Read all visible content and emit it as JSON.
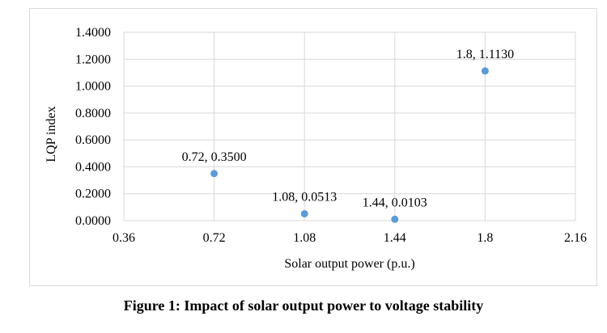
{
  "chart_data": {
    "type": "scatter",
    "title": "",
    "xlabel": "Solar output power (p.u.)",
    "ylabel": "LQP index",
    "xlim": [
      0.36,
      2.16
    ],
    "ylim": [
      0.0,
      1.4
    ],
    "x_ticks": [
      {
        "value": 0.36,
        "label": "0.36"
      },
      {
        "value": 0.72,
        "label": "0.72"
      },
      {
        "value": 1.08,
        "label": "1.08"
      },
      {
        "value": 1.44,
        "label": "1.44"
      },
      {
        "value": 1.8,
        "label": "1.8"
      },
      {
        "value": 2.16,
        "label": "2.16"
      }
    ],
    "y_ticks": [
      {
        "value": 0.0,
        "label": "0.0000"
      },
      {
        "value": 0.2,
        "label": "0.2000"
      },
      {
        "value": 0.4,
        "label": "0.4000"
      },
      {
        "value": 0.6,
        "label": "0.6000"
      },
      {
        "value": 0.8,
        "label": "0.8000"
      },
      {
        "value": 1.0,
        "label": "1.0000"
      },
      {
        "value": 1.2,
        "label": "1.2000"
      },
      {
        "value": 1.4,
        "label": "1.4000"
      }
    ],
    "points": [
      {
        "x": 0.72,
        "y": 0.35,
        "label": "0.72, 0.3500"
      },
      {
        "x": 1.08,
        "y": 0.0513,
        "label": "1.08, 0.0513"
      },
      {
        "x": 1.44,
        "y": 0.0103,
        "label": "1.44, 0.0103"
      },
      {
        "x": 1.8,
        "y": 1.113,
        "label": "1.8, 1.1130"
      }
    ],
    "grid": true,
    "legend": "none",
    "marker_color": "#5b9bd5",
    "grid_color": "#d9d9d9"
  },
  "caption": "Figure 1: Impact of solar output power to voltage stability"
}
